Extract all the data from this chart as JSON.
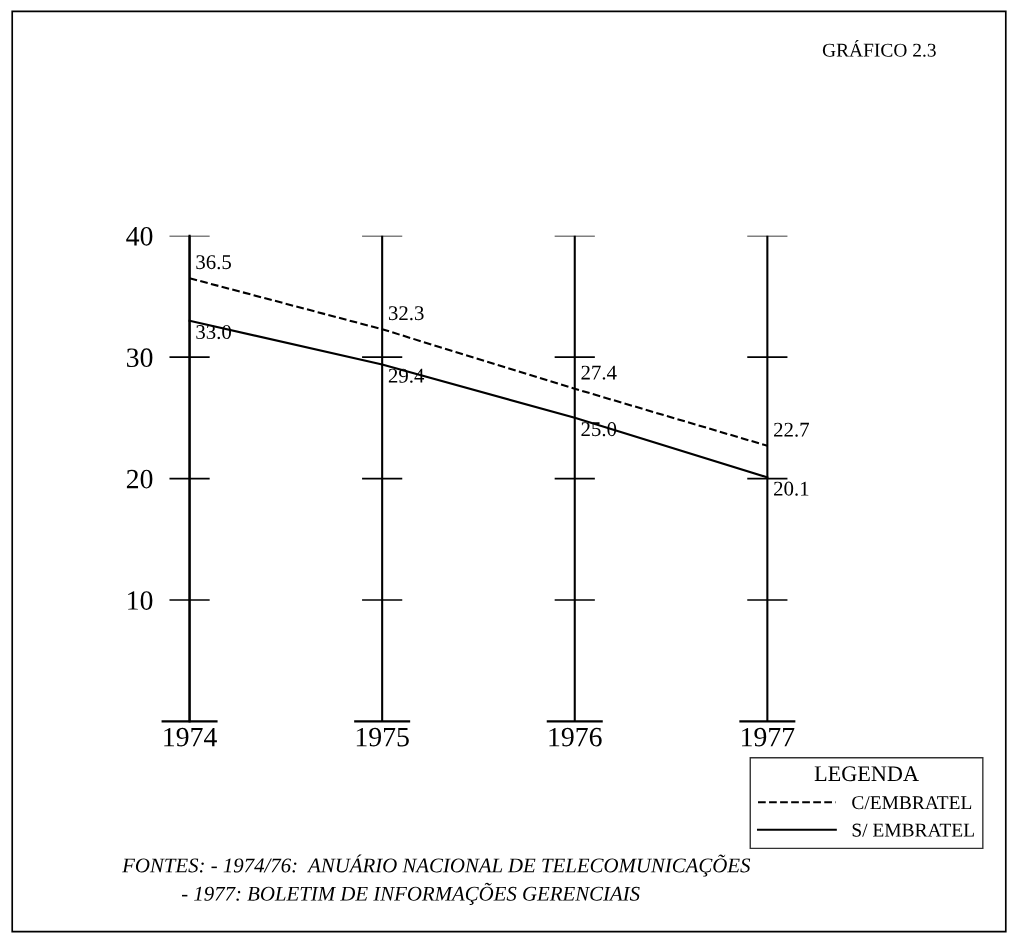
{
  "chart_data": {
    "type": "line",
    "title": "GRÁFICO 2.3",
    "categories": [
      "1974",
      "1975",
      "1976",
      "1977"
    ],
    "series": [
      {
        "name": "C/EMBRATEL",
        "color": "#000000",
        "line_style": "dashed",
        "values": [
          36.5,
          32.3,
          27.4,
          22.7
        ],
        "value_labels": [
          "36.5",
          "32.3",
          "27.4",
          "22.7"
        ]
      },
      {
        "name": "S/ EMBRATEL",
        "color": "#000000",
        "line_style": "solid",
        "values": [
          33.0,
          29.4,
          25.0,
          20.1
        ],
        "value_labels": [
          "33.0",
          "29.4",
          "25.0",
          "20.1"
        ]
      }
    ],
    "ylim": [
      0,
      40
    ],
    "yticks": [
      10,
      20,
      30,
      40
    ],
    "grid": "x",
    "marker": "none",
    "legend": "bottom right",
    "legend_title": "LEGENDA",
    "annotations": [
      "FONTES: - 1974/76:  ANUÁRIO NACIONAL DE TELECOMUNICAÇÕES",
      "- 1977: BOLETIM DE INFORMAÇÕES GERENCIAIS"
    ]
  }
}
